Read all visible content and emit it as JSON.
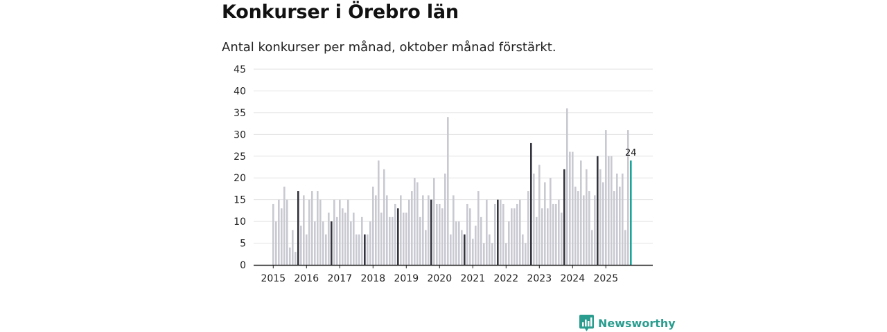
{
  "title": "Konkurser i Örebro län",
  "subtitle": "Antal konkurser per månad, oktober månad förstärkt.",
  "brand": "Newsworthy",
  "colors": {
    "bar_default": "#c9c9d2",
    "bar_october": "#33333d",
    "bar_latest": "#19a39a",
    "gridline": "#e2e2e2",
    "axis": "#222222",
    "brand": "#2a9d8f"
  },
  "chart_data": {
    "type": "bar",
    "title": "Konkurser i Örebro län",
    "subtitle": "Antal konkurser per månad, oktober månad förstärkt.",
    "xlabel": "",
    "ylabel": "",
    "ylim": [
      0,
      45
    ],
    "yticks": [
      0,
      5,
      10,
      15,
      20,
      25,
      30,
      35,
      40,
      45
    ],
    "grid": true,
    "start": "2015-01",
    "highlight_month": "oktober",
    "xticks": [
      "2015",
      "2016",
      "2017",
      "2018",
      "2019",
      "2020",
      "2021",
      "2022",
      "2023",
      "2024",
      "2025"
    ],
    "values": [
      14,
      10,
      15,
      13,
      18,
      15,
      4,
      8,
      3,
      17,
      9,
      16,
      7,
      15,
      17,
      10,
      17,
      15,
      10,
      7,
      12,
      10,
      15,
      11,
      15,
      13,
      12,
      15,
      10,
      12,
      7,
      7,
      11,
      7,
      7,
      10,
      18,
      16,
      24,
      12,
      22,
      16,
      11,
      11,
      14,
      13,
      16,
      12,
      12,
      15,
      17,
      20,
      19,
      11,
      16,
      8,
      16,
      15,
      20,
      14,
      14,
      13,
      21,
      34,
      7,
      16,
      10,
      10,
      8,
      7,
      14,
      13,
      6,
      9,
      17,
      11,
      5,
      15,
      7,
      5,
      14,
      15,
      15,
      14,
      5,
      10,
      13,
      13,
      14,
      15,
      7,
      5,
      17,
      28,
      21,
      11,
      23,
      13,
      19,
      13,
      20,
      14,
      14,
      15,
      12,
      22,
      36,
      26,
      26,
      18,
      17,
      24,
      16,
      22,
      17,
      8,
      16,
      25,
      22,
      19,
      31,
      25,
      25,
      17,
      21,
      18,
      21,
      8,
      31,
      24
    ],
    "latest_label": "24"
  }
}
